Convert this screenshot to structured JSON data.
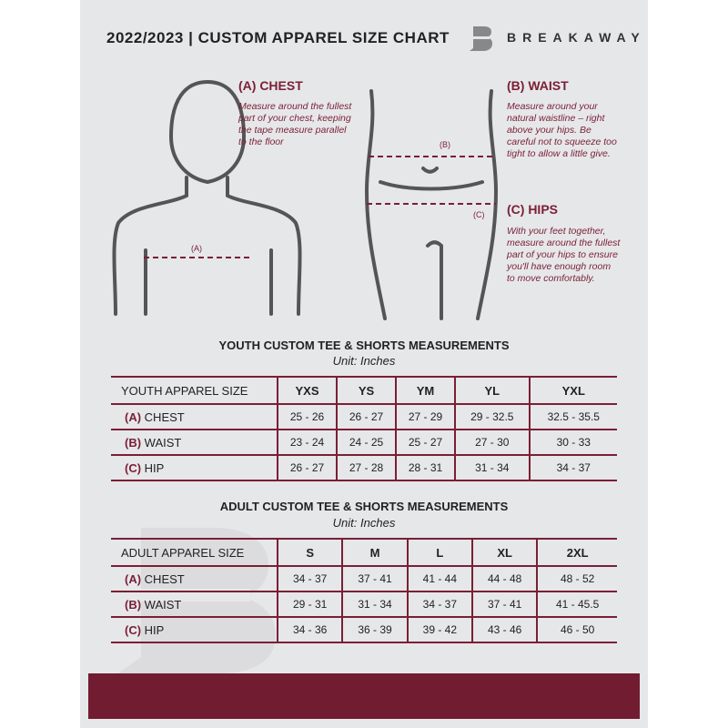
{
  "header": {
    "title": "2022/2023  |  CUSTOM APPAREL SIZE CHART",
    "brand": "BREAKAWAY",
    "logo_letter": "B"
  },
  "colors": {
    "accent": "#7a1f35",
    "background": "#e6e7e9",
    "footer": "#721c31"
  },
  "guides": {
    "chest": {
      "heading": "(A) CHEST",
      "marker": "(A)",
      "text": "Measure around the fullest part of your chest, keeping the tape measure parallel to the floor"
    },
    "waist": {
      "heading": "(B) WAIST",
      "marker": "(B)",
      "text": "Measure around your natural waistline – right above your hips. Be careful not to squeeze too tight to allow a little give."
    },
    "hips": {
      "heading": "(C) HIPS",
      "marker": "(C)",
      "text": "With your feet together, measure around the fullest part of your hips to ensure you'll have enough room to move comfortably."
    }
  },
  "youth": {
    "title": "YOUTH CUSTOM TEE & SHORTS MEASUREMENTS",
    "unit": "Unit: Inches",
    "corner": "YOUTH APPAREL SIZE",
    "sizes": [
      "YXS",
      "YS",
      "YM",
      "YL",
      "YXL"
    ],
    "rows": [
      {
        "key": "(A)",
        "label": "CHEST",
        "values": [
          "25 - 26",
          "26 - 27",
          "27 - 29",
          "29 - 32.5",
          "32.5 - 35.5"
        ]
      },
      {
        "key": "(B)",
        "label": "WAIST",
        "values": [
          "23 - 24",
          "24 - 25",
          "25 - 27",
          "27 - 30",
          "30 - 33"
        ]
      },
      {
        "key": "(C)",
        "label": "HIP",
        "values": [
          "26 - 27",
          "27 - 28",
          "28 - 31",
          "31 - 34",
          "34 - 37"
        ]
      }
    ]
  },
  "adult": {
    "title": "ADULT CUSTOM TEE & SHORTS MEASUREMENTS",
    "unit": "Unit: Inches",
    "corner": "ADULT APPAREL SIZE",
    "sizes": [
      "S",
      "M",
      "L",
      "XL",
      "2XL"
    ],
    "rows": [
      {
        "key": "(A)",
        "label": "CHEST",
        "values": [
          "34 - 37",
          "37 - 41",
          "41 - 44",
          "44 - 48",
          "48 - 52"
        ]
      },
      {
        "key": "(B)",
        "label": "WAIST",
        "values": [
          "29 - 31",
          "31 - 34",
          "34 - 37",
          "37 - 41",
          "41 - 45.5"
        ]
      },
      {
        "key": "(C)",
        "label": "HIP",
        "values": [
          "34 - 36",
          "36 - 39",
          "39 - 42",
          "43 - 46",
          "46 - 50"
        ]
      }
    ]
  }
}
